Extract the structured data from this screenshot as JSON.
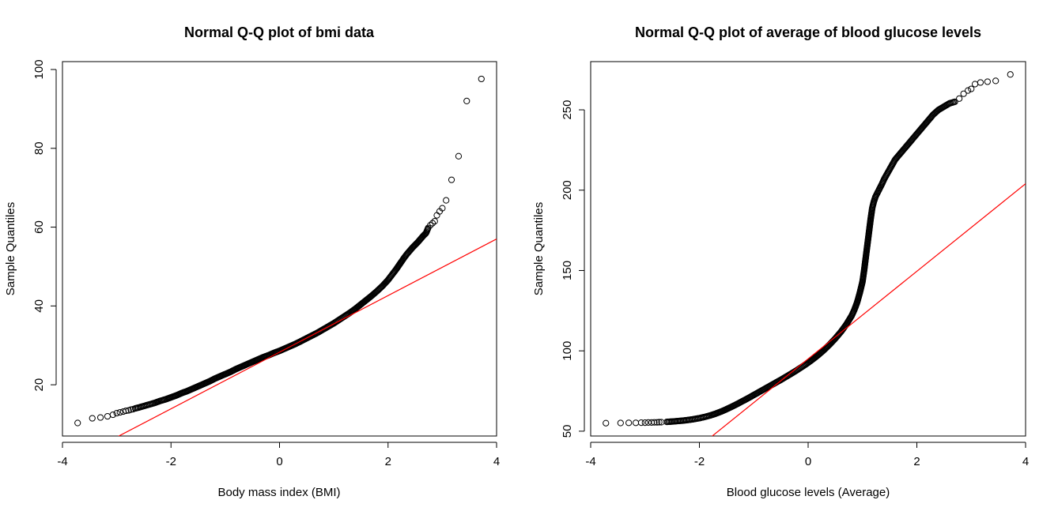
{
  "chart_data": [
    {
      "type": "scatter",
      "title": "Normal Q-Q plot of bmi data",
      "xlabel": "Body mass index (BMI)",
      "ylabel": "Sample Quantiles",
      "xlim": [
        -4,
        4
      ],
      "ylim": [
        7,
        102
      ],
      "xticks": [
        -4,
        -2,
        0,
        2,
        4
      ],
      "yticks": [
        20,
        40,
        60,
        80,
        100
      ],
      "grid": false,
      "line_color": "#ff0000",
      "point_color": "#000000",
      "reference_line": {
        "x": [
          -3.1,
          4.0
        ],
        "y": [
          6.0,
          57.0
        ]
      },
      "series": [
        {
          "values_desc": "sample quantiles vs theoretical normal quantiles",
          "x": [
            -3.72,
            -3.45,
            -3.3,
            -3.17,
            -3.07,
            -3.0,
            -2.94,
            -2.88,
            -2.83,
            -2.78,
            -2.74,
            -2.7,
            -2.66,
            -2.6,
            -2.5,
            -2.4,
            -2.3,
            -2.2,
            -2.1,
            -2.0,
            -1.9,
            -1.8,
            -1.7,
            -1.6,
            -1.5,
            -1.4,
            -1.3,
            -1.2,
            -1.1,
            -1.0,
            -0.9,
            -0.8,
            -0.7,
            -0.6,
            -0.5,
            -0.4,
            -0.3,
            -0.2,
            -0.1,
            0.0,
            0.1,
            0.2,
            0.3,
            0.4,
            0.5,
            0.6,
            0.7,
            0.8,
            0.9,
            1.0,
            1.1,
            1.2,
            1.3,
            1.4,
            1.5,
            1.6,
            1.7,
            1.8,
            1.9,
            2.0,
            2.05,
            2.1,
            2.15,
            2.2,
            2.25,
            2.3,
            2.35,
            2.4,
            2.45,
            2.5,
            2.55,
            2.6,
            2.65,
            2.7,
            2.74,
            2.78,
            2.82,
            2.86,
            2.9,
            2.95,
            3.0,
            3.07,
            3.17,
            3.3,
            3.45,
            3.72
          ],
          "y": [
            10.3,
            11.5,
            11.7,
            12.0,
            12.4,
            12.8,
            13.0,
            13.2,
            13.4,
            13.5,
            13.7,
            13.8,
            14.0,
            14.2,
            14.6,
            15.0,
            15.4,
            15.9,
            16.3,
            16.8,
            17.3,
            17.9,
            18.4,
            19.0,
            19.6,
            20.2,
            20.8,
            21.5,
            22.1,
            22.7,
            23.3,
            24.0,
            24.6,
            25.2,
            25.8,
            26.4,
            27.0,
            27.5,
            28.1,
            28.6,
            29.2,
            29.8,
            30.4,
            31.1,
            31.8,
            32.5,
            33.2,
            34.0,
            34.8,
            35.6,
            36.5,
            37.4,
            38.3,
            39.3,
            40.4,
            41.5,
            42.6,
            43.8,
            45.1,
            46.6,
            47.5,
            48.4,
            49.3,
            50.3,
            51.3,
            52.3,
            53.2,
            54.0,
            54.8,
            55.5,
            56.2,
            57.0,
            57.8,
            58.5,
            59.8,
            60.5,
            61.0,
            61.5,
            63.0,
            64.0,
            64.8,
            66.8,
            72.0,
            78.0,
            92.0,
            97.6
          ]
        }
      ]
    },
    {
      "type": "scatter",
      "title": "Normal Q-Q plot of average of blood glucose levels",
      "xlabel": "Blood glucose levels (Average)",
      "ylabel": "Sample Quantiles",
      "xlim": [
        -4,
        4
      ],
      "ylim": [
        47,
        280
      ],
      "xticks": [
        -4,
        -2,
        0,
        2,
        4
      ],
      "yticks": [
        50,
        100,
        150,
        200,
        250
      ],
      "grid": false,
      "line_color": "#ff0000",
      "point_color": "#000000",
      "reference_line": {
        "x": [
          -1.8,
          4.0
        ],
        "y": [
          46.0,
          204.0
        ]
      },
      "series": [
        {
          "values_desc": "sample quantiles vs theoretical normal quantiles",
          "x": [
            -3.72,
            -3.45,
            -3.3,
            -3.17,
            -3.07,
            -3.0,
            -2.94,
            -2.88,
            -2.83,
            -2.78,
            -2.74,
            -2.7,
            -2.6,
            -2.5,
            -2.4,
            -2.3,
            -2.2,
            -2.1,
            -2.0,
            -1.9,
            -1.8,
            -1.7,
            -1.6,
            -1.5,
            -1.4,
            -1.3,
            -1.2,
            -1.1,
            -1.0,
            -0.9,
            -0.8,
            -0.7,
            -0.6,
            -0.5,
            -0.4,
            -0.3,
            -0.2,
            -0.1,
            0.0,
            0.1,
            0.2,
            0.3,
            0.4,
            0.5,
            0.6,
            0.7,
            0.8,
            0.85,
            0.9,
            0.95,
            1.0,
            1.03,
            1.06,
            1.09,
            1.12,
            1.15,
            1.18,
            1.21,
            1.24,
            1.27,
            1.3,
            1.33,
            1.36,
            1.4,
            1.45,
            1.5,
            1.55,
            1.6,
            1.65,
            1.7,
            1.75,
            1.8,
            1.9,
            2.0,
            2.1,
            2.2,
            2.3,
            2.4,
            2.5,
            2.6,
            2.7,
            2.78,
            2.86,
            2.94,
            3.0,
            3.07,
            3.17,
            3.3,
            3.45,
            3.72
          ],
          "y": [
            55.0,
            55.1,
            55.2,
            55.2,
            55.3,
            55.3,
            55.4,
            55.4,
            55.5,
            55.5,
            55.6,
            55.6,
            55.8,
            56.0,
            56.3,
            56.6,
            57.0,
            57.5,
            58.1,
            58.9,
            59.8,
            60.9,
            62.2,
            63.7,
            65.3,
            67.0,
            68.8,
            70.6,
            72.5,
            74.4,
            76.3,
            78.2,
            80.1,
            82.0,
            84.0,
            86.0,
            88.1,
            90.3,
            92.6,
            95.1,
            97.8,
            100.8,
            104.1,
            107.7,
            111.7,
            116.3,
            121.8,
            125.5,
            130.0,
            136.0,
            143.0,
            150.0,
            158.0,
            166.0,
            174.0,
            182.0,
            189.0,
            193.0,
            196.0,
            198.0,
            200.0,
            202.0,
            204.0,
            207.0,
            210.0,
            213.0,
            216.0,
            219.0,
            221.0,
            223.0,
            225.0,
            227.0,
            231.0,
            235.0,
            239.0,
            243.0,
            247.0,
            250.0,
            252.0,
            254.0,
            255.0,
            257.0,
            260.0,
            262.0,
            263.0,
            266.0,
            267.0,
            267.5,
            268.0,
            272.0
          ]
        }
      ]
    }
  ]
}
